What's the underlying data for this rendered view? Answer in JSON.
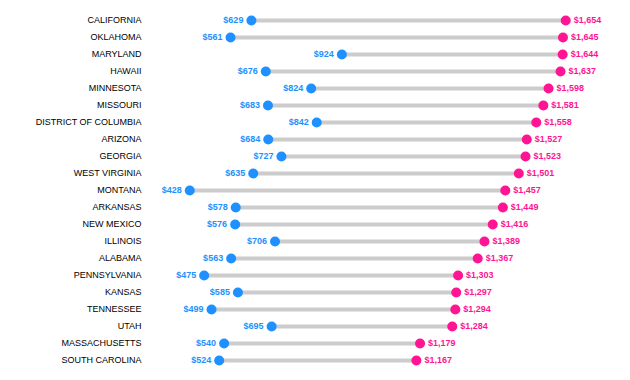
{
  "chart_data": {
    "type": "dumbbell",
    "orientation": "horizontal",
    "categories": [
      "CALIFORNIA",
      "OKLAHOMA",
      "MARYLAND",
      "HAWAII",
      "MINNESOTA",
      "MISSOURI",
      "DISTRICT OF COLUMBIA",
      "ARIZONA",
      "GEORGIA",
      "WEST VIRGINIA",
      "MONTANA",
      "ARKANSAS",
      "NEW MEXICO",
      "ILLINOIS",
      "ALABAMA",
      "PENNSYLVANIA",
      "KANSAS",
      "TENNESSEE",
      "UTAH",
      "MASSACHUSETTS",
      "SOUTH CAROLINA"
    ],
    "series": [
      {
        "color": "#1E90FF",
        "values": [
          629,
          561,
          924,
          676,
          824,
          683,
          842,
          684,
          727,
          635,
          428,
          578,
          576,
          706,
          563,
          475,
          585,
          499,
          695,
          540,
          524
        ],
        "value_labels": [
          "$629",
          "$561",
          "$924",
          "$676",
          "$824",
          "$683",
          "$842",
          "$684",
          "$727",
          "$635",
          "$428",
          "$578",
          "$576",
          "$706",
          "$563",
          "$475",
          "$585",
          "$499",
          "$695",
          "$540",
          "$524"
        ]
      },
      {
        "color": "#FF1493",
        "values": [
          1654,
          1645,
          1644,
          1637,
          1598,
          1581,
          1558,
          1527,
          1523,
          1501,
          1457,
          1449,
          1416,
          1389,
          1367,
          1303,
          1297,
          1294,
          1284,
          1179,
          1167
        ],
        "value_labels": [
          "$1,654",
          "$1,645",
          "$1,644",
          "$1,637",
          "$1,598",
          "$1,581",
          "$1,558",
          "$1,527",
          "$1,523",
          "$1,501",
          "$1,457",
          "$1,449",
          "$1,416",
          "$1,389",
          "$1,367",
          "$1,303",
          "$1,297",
          "$1,294",
          "$1,284",
          "$1,179",
          "$1,167"
        ]
      }
    ],
    "color": "#CCCCCC",
    "xlim": [
      300,
      1800
    ],
    "data_labels": true,
    "tick_labels": "y",
    "grid": false
  }
}
